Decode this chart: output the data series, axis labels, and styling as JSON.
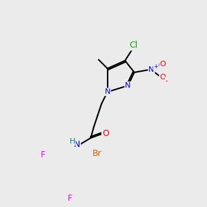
{
  "bg_color": "#ebebeb",
  "bond_color": "#000000",
  "atom_colors": {
    "N": "#0000ff",
    "O": "#ff0000",
    "Cl": "#00aa00",
    "Br": "#cc6600",
    "F": "#ff00ff",
    "H": "#008080",
    "C": "#000000",
    "plus": "#0000ff",
    "minus": "#ff0000"
  },
  "figsize": [
    3.0,
    3.0
  ],
  "dpi": 100
}
